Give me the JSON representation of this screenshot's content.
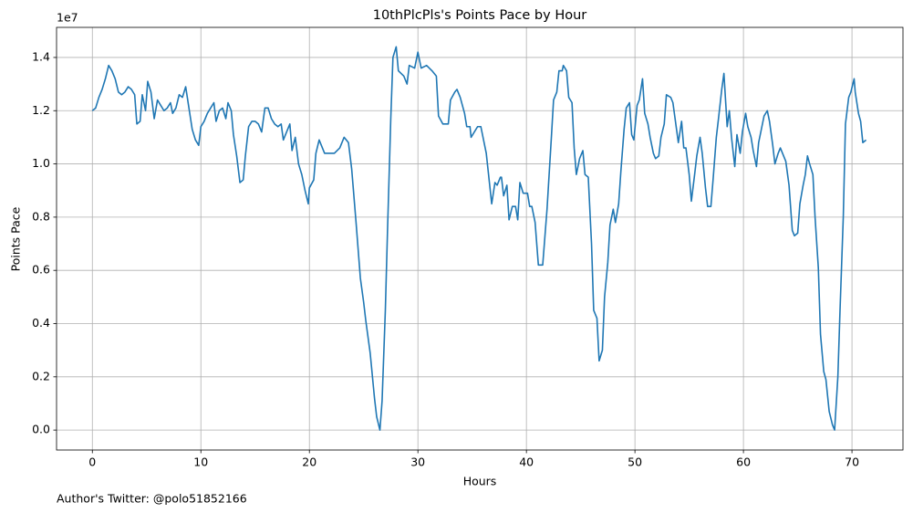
{
  "chart_data": {
    "type": "line",
    "title": "10thPlcPls's Points Pace by Hour",
    "x_label": "Hours",
    "y_label": "Points Pace",
    "y_offset_label": "1e7",
    "footer": "Author's Twitter: @polo51852166",
    "color": "#1f77b4",
    "grid": true,
    "xlim": [
      -3.3,
      74.7
    ],
    "ylim": [
      -0.075,
      1.513
    ],
    "xticks": [
      0,
      10,
      20,
      30,
      40,
      50,
      60,
      70
    ],
    "yticks": [
      {
        "value": 0,
        "label": "0.0"
      },
      0.2,
      0.4,
      0.6,
      0.8,
      {
        "value": 1,
        "label": "1.0"
      },
      1.2,
      1.4
    ],
    "x": [
      0,
      0.3,
      0.6,
      0.9,
      1.2,
      1.5,
      1.8,
      2.1,
      2.4,
      2.7,
      3.0,
      3.3,
      3.6,
      3.9,
      4.1,
      4.4,
      4.6,
      4.9,
      5.1,
      5.4,
      5.7,
      6.0,
      6.3,
      6.6,
      6.9,
      7.2,
      7.4,
      7.7,
      8.0,
      8.3,
      8.6,
      8.9,
      9.2,
      9.5,
      9.8,
      10.0,
      10.3,
      10.6,
      10.9,
      11.2,
      11.4,
      11.7,
      12.0,
      12.3,
      12.5,
      12.8,
      13.0,
      13.3,
      13.6,
      13.9,
      14.1,
      14.4,
      14.7,
      15.0,
      15.3,
      15.6,
      15.9,
      16.2,
      16.5,
      16.8,
      17.1,
      17.4,
      17.6,
      17.9,
      18.2,
      18.4,
      18.7,
      19.0,
      19.3,
      19.6,
      19.9,
      20.0,
      20.4,
      20.6,
      20.9,
      21.4,
      21.8,
      22.3,
      22.8,
      23.2,
      23.6,
      23.9,
      24.3,
      24.7,
      25.0,
      25.2,
      25.6,
      26.0,
      26.2,
      26.5,
      26.7,
      27.0,
      27.2,
      27.5,
      27.7,
      28.0,
      28.2,
      28.7,
      29.0,
      29.2,
      29.7,
      30.0,
      30.3,
      30.8,
      31.3,
      31.7,
      31.9,
      32.3,
      32.8,
      33.0,
      33.4,
      33.6,
      33.9,
      34.3,
      34.5,
      34.8,
      34.9,
      35.5,
      35.8,
      36.3,
      36.8,
      37.1,
      37.3,
      37.6,
      37.7,
      37.9,
      38.2,
      38.4,
      38.7,
      39.0,
      39.2,
      39.4,
      39.7,
      40.1,
      40.3,
      40.5,
      40.8,
      41.1,
      41.5,
      41.9,
      42.3,
      42.5,
      42.8,
      43.0,
      43.3,
      43.4,
      43.7,
      43.9,
      44.2,
      44.4,
      44.6,
      44.9,
      45.2,
      45.4,
      45.7,
      46.0,
      46.2,
      46.5,
      46.7,
      47.0,
      47.2,
      47.5,
      47.7,
      48.0,
      48.2,
      48.5,
      48.7,
      49.0,
      49.2,
      49.5,
      49.7,
      49.9,
      50.2,
      50.4,
      50.7,
      50.9,
      51.2,
      51.4,
      51.7,
      51.9,
      52.2,
      52.4,
      52.7,
      52.9,
      53.3,
      53.5,
      53.8,
      54.0,
      54.3,
      54.5,
      54.7,
      55.0,
      55.2,
      55.5,
      55.7,
      56.0,
      56.2,
      56.5,
      56.7,
      57.0,
      57.2,
      57.5,
      57.7,
      58.0,
      58.2,
      58.5,
      58.7,
      58.9,
      59.2,
      59.4,
      59.7,
      59.9,
      60.2,
      60.4,
      60.7,
      60.9,
      61.2,
      61.4,
      61.7,
      61.9,
      62.2,
      62.4,
      62.7,
      62.9,
      63.2,
      63.4,
      63.7,
      63.9,
      64.2,
      64.5,
      64.7,
      65.0,
      65.2,
      65.5,
      65.7,
      65.9,
      66.1,
      66.4,
      66.6,
      66.9,
      67.1,
      67.4,
      67.6,
      67.9,
      68.2,
      68.4,
      68.7,
      68.9,
      69.2,
      69.4,
      69.7,
      69.9,
      70.2,
      70.3,
      70.6,
      70.8,
      71.0,
      71.3
    ],
    "values": [
      1.2,
      1.21,
      1.25,
      1.28,
      1.32,
      1.37,
      1.35,
      1.32,
      1.27,
      1.26,
      1.27,
      1.29,
      1.28,
      1.26,
      1.15,
      1.16,
      1.26,
      1.2,
      1.31,
      1.27,
      1.17,
      1.24,
      1.22,
      1.2,
      1.21,
      1.23,
      1.19,
      1.21,
      1.26,
      1.25,
      1.29,
      1.21,
      1.13,
      1.09,
      1.07,
      1.14,
      1.16,
      1.19,
      1.21,
      1.23,
      1.16,
      1.2,
      1.21,
      1.17,
      1.23,
      1.2,
      1.11,
      1.03,
      0.93,
      0.94,
      1.03,
      1.14,
      1.16,
      1.16,
      1.15,
      1.12,
      1.21,
      1.21,
      1.17,
      1.15,
      1.14,
      1.15,
      1.09,
      1.12,
      1.15,
      1.05,
      1.1,
      1.0,
      0.96,
      0.9,
      0.85,
      0.91,
      0.94,
      1.04,
      1.09,
      1.04,
      1.04,
      1.04,
      1.06,
      1.1,
      1.08,
      0.98,
      0.78,
      0.57,
      0.48,
      0.41,
      0.29,
      0.12,
      0.05,
      0.0,
      0.11,
      0.45,
      0.75,
      1.17,
      1.4,
      1.44,
      1.35,
      1.33,
      1.3,
      1.37,
      1.36,
      1.42,
      1.36,
      1.37,
      1.35,
      1.33,
      1.18,
      1.15,
      1.15,
      1.24,
      1.27,
      1.28,
      1.25,
      1.19,
      1.14,
      1.14,
      1.1,
      1.14,
      1.14,
      1.04,
      0.85,
      0.93,
      0.92,
      0.95,
      0.95,
      0.88,
      0.92,
      0.79,
      0.84,
      0.84,
      0.79,
      0.93,
      0.89,
      0.89,
      0.84,
      0.84,
      0.78,
      0.62,
      0.62,
      0.83,
      1.1,
      1.24,
      1.27,
      1.35,
      1.35,
      1.37,
      1.35,
      1.25,
      1.23,
      1.06,
      0.96,
      1.02,
      1.05,
      0.96,
      0.95,
      0.7,
      0.45,
      0.42,
      0.26,
      0.3,
      0.5,
      0.63,
      0.77,
      0.83,
      0.78,
      0.85,
      0.97,
      1.13,
      1.21,
      1.23,
      1.11,
      1.09,
      1.22,
      1.24,
      1.32,
      1.19,
      1.15,
      1.1,
      1.04,
      1.02,
      1.03,
      1.1,
      1.15,
      1.26,
      1.25,
      1.23,
      1.14,
      1.08,
      1.16,
      1.06,
      1.06,
      0.96,
      0.86,
      0.96,
      1.03,
      1.1,
      1.04,
      0.91,
      0.84,
      0.84,
      0.94,
      1.1,
      1.17,
      1.28,
      1.34,
      1.14,
      1.2,
      1.1,
      0.99,
      1.11,
      1.04,
      1.12,
      1.19,
      1.14,
      1.1,
      1.05,
      0.99,
      1.08,
      1.14,
      1.18,
      1.2,
      1.16,
      1.07,
      1.0,
      1.04,
      1.06,
      1.03,
      1.01,
      0.92,
      0.75,
      0.73,
      0.74,
      0.85,
      0.92,
      0.96,
      1.03,
      1.0,
      0.96,
      0.8,
      0.61,
      0.36,
      0.22,
      0.19,
      0.07,
      0.02,
      0.0,
      0.2,
      0.45,
      0.8,
      1.15,
      1.25,
      1.27,
      1.32,
      1.27,
      1.19,
      1.16,
      1.08,
      1.09
    ]
  }
}
